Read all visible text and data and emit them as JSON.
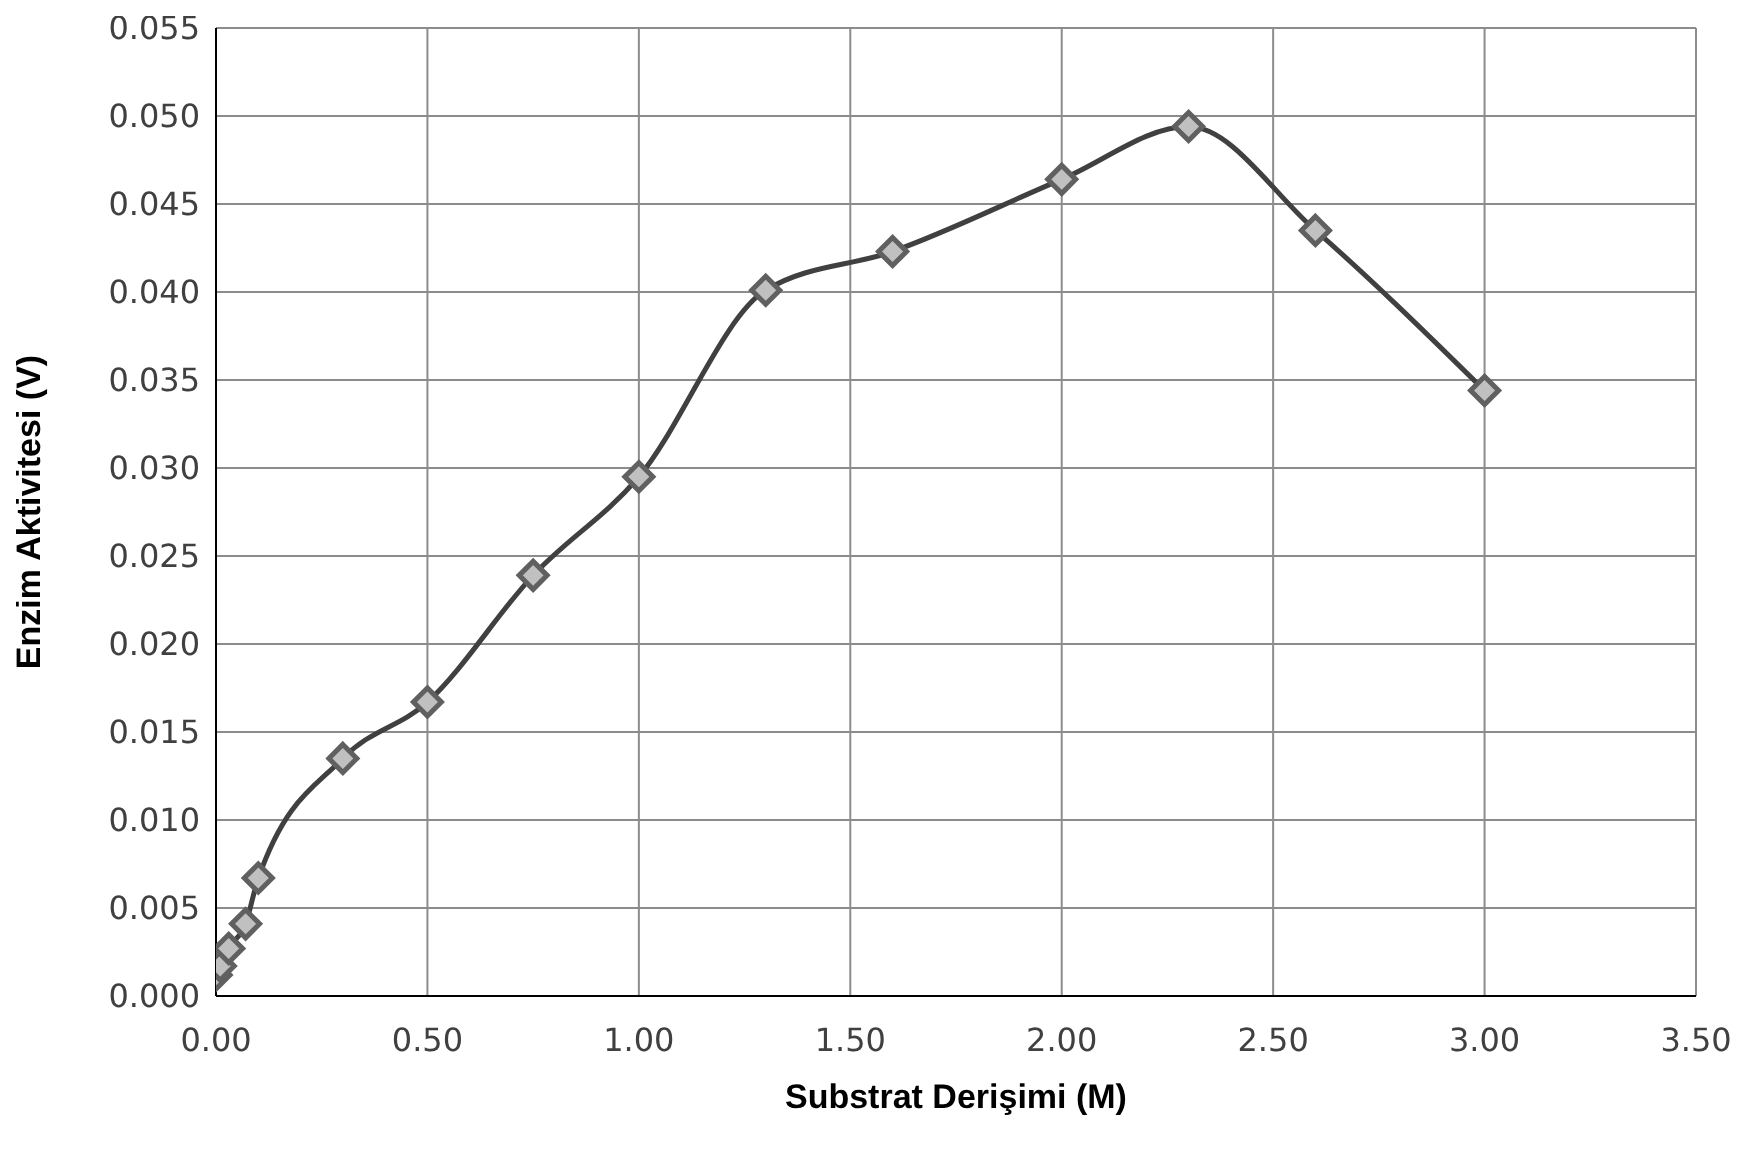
{
  "chart_data": {
    "type": "line",
    "xlabel": "Substrat Derişimi (M)",
    "ylabel": "Enzim Aktivitesi (V)",
    "series": [
      {
        "color": "#404040",
        "x": [
          0.0,
          0.01,
          0.03,
          0.07,
          0.1,
          0.3,
          0.5,
          0.75,
          1.0,
          1.3,
          1.6,
          2.0,
          2.3,
          2.6,
          3.0
        ],
        "values": [
          0.0012,
          0.0017,
          0.0027,
          0.0041,
          0.0067,
          0.0135,
          0.0167,
          0.0239,
          0.0295,
          0.0401,
          0.0423,
          0.0464,
          0.0494,
          0.0435,
          0.0344
        ]
      }
    ],
    "xlim": [
      0,
      3.5
    ],
    "xticks": [
      {
        "value": 0,
        "label": "0.00"
      },
      {
        "value": 0.5,
        "label": "0.50"
      },
      {
        "value": 1,
        "label": "1.00"
      },
      {
        "value": 1.5,
        "label": "1.50"
      },
      {
        "value": 2,
        "label": "2.00"
      },
      {
        "value": 2.5,
        "label": "2.50"
      },
      {
        "value": 3,
        "label": "3.00"
      },
      {
        "value": 3.5,
        "label": "3.50"
      }
    ],
    "ylim": [
      0,
      0.055
    ],
    "yticks": [
      {
        "value": 0,
        "label": "0.000"
      },
      {
        "value": 0.005,
        "label": "0.005"
      },
      {
        "value": 0.01,
        "label": "0.010"
      },
      {
        "value": 0.015,
        "label": "0.015"
      },
      {
        "value": 0.02,
        "label": "0.020"
      },
      {
        "value": 0.025,
        "label": "0.025"
      },
      {
        "value": 0.03,
        "label": "0.030"
      },
      {
        "value": 0.035,
        "label": "0.035"
      },
      {
        "value": 0.04,
        "label": "0.040"
      },
      {
        "value": 0.045,
        "label": "0.045"
      },
      {
        "value": 0.05,
        "label": "0.050"
      },
      {
        "value": 0.055,
        "label": "0.055"
      }
    ],
    "grid": true,
    "marker": "diamond",
    "line_style": "solid"
  }
}
